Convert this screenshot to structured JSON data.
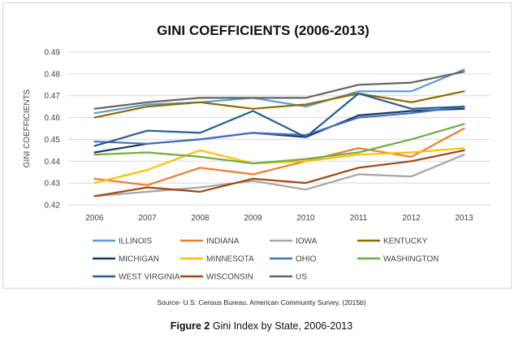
{
  "figure": {
    "source": "Source- U.S. Census Bureau. American Community Survey. (2015b)",
    "caption_label": "Figure 2",
    "caption_text": "Gini Index by State, 2006-2013"
  },
  "chart_data": {
    "type": "line",
    "title": "GINI COEFFICIENTS (2006-2013)",
    "xlabel": "",
    "ylabel": "GINI COEFFICIENTS",
    "x": [
      "2006",
      "2007",
      "2008",
      "2009",
      "2010",
      "2011",
      "2012",
      "2013"
    ],
    "ylim": [
      0.42,
      0.49
    ],
    "yticks": [
      "0.42",
      "0.43",
      "0.44",
      "0.45",
      "0.46",
      "0.47",
      "0.48",
      "0.49"
    ],
    "grid": true,
    "legend_position": "bottom",
    "series": [
      {
        "name": "ILLINOIS",
        "color": "#5b9bd5",
        "values": [
          0.462,
          0.466,
          0.467,
          0.469,
          0.465,
          0.472,
          0.472,
          0.482
        ]
      },
      {
        "name": "INDIANA",
        "color": "#ed7d31",
        "values": [
          0.432,
          0.429,
          0.437,
          0.434,
          0.44,
          0.446,
          0.442,
          0.455
        ]
      },
      {
        "name": "IOWA",
        "color": "#a5a5a5",
        "values": [
          0.424,
          0.426,
          0.428,
          0.431,
          0.427,
          0.434,
          0.433,
          0.443
        ]
      },
      {
        "name": "KENTUCKY",
        "color": "#8a6d00",
        "values": [
          0.46,
          0.465,
          0.467,
          0.464,
          0.466,
          0.471,
          0.467,
          0.472
        ]
      },
      {
        "name": "MICHIGAN",
        "color": "#1f3864",
        "values": [
          0.444,
          0.448,
          0.45,
          0.453,
          0.451,
          0.461,
          0.463,
          0.464
        ]
      },
      {
        "name": "MINNESOTA",
        "color": "#ffc000",
        "values": [
          0.43,
          0.436,
          0.445,
          0.439,
          0.44,
          0.443,
          0.444,
          0.446
        ]
      },
      {
        "name": "OHIO",
        "color": "#4472c4",
        "values": [
          0.449,
          0.448,
          0.45,
          0.453,
          0.452,
          0.46,
          0.462,
          0.465
        ]
      },
      {
        "name": "WASHINGTON",
        "color": "#70ad47",
        "values": [
          0.443,
          0.444,
          0.442,
          0.439,
          0.441,
          0.444,
          0.45,
          0.457
        ]
      },
      {
        "name": "WEST VIRGINIA",
        "color": "#255e91",
        "values": [
          0.447,
          0.454,
          0.453,
          0.463,
          0.451,
          0.471,
          0.464,
          0.465
        ]
      },
      {
        "name": "WISCONSIN",
        "color": "#9e480e",
        "values": [
          0.424,
          0.428,
          0.426,
          0.432,
          0.43,
          0.437,
          0.44,
          0.445
        ]
      },
      {
        "name": "US",
        "color": "#636363",
        "values": [
          0.464,
          0.467,
          0.469,
          0.469,
          0.469,
          0.475,
          0.476,
          0.481
        ]
      }
    ]
  }
}
